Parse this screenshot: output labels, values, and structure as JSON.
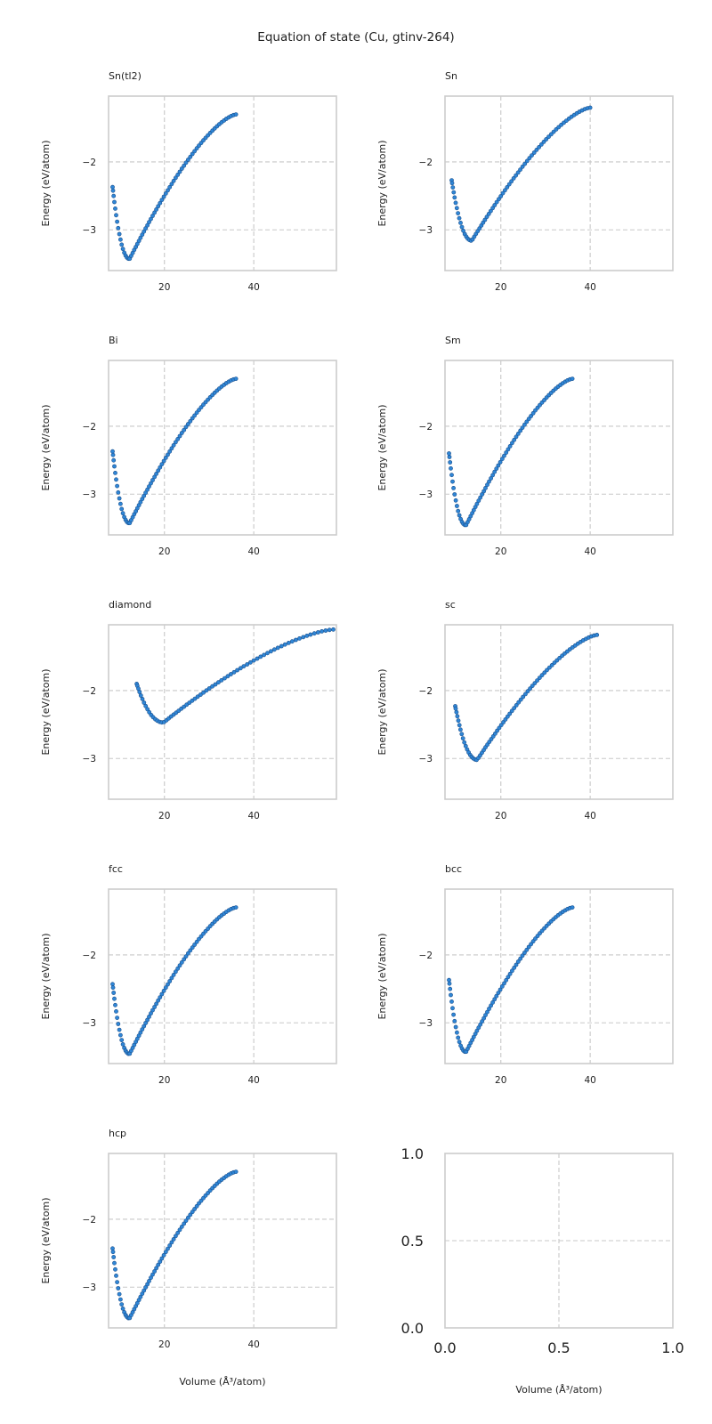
{
  "figure": {
    "suptitle": "Equation of state (Cu, gtinv-264)"
  },
  "colors": {
    "marker_fill": "#2f86d6",
    "marker_edge": "#1a4f8c",
    "grid": "#c8c8c8",
    "frame": "#cccccc"
  },
  "chart_data": [
    {
      "type": "scatter",
      "title": "Sn(tl2)",
      "xlabel": "",
      "ylabel": "Energy (eV/atom)",
      "xlim": [
        7.5,
        58.5
      ],
      "ylim": [
        -3.6,
        -1.03
      ],
      "xticks": [
        20,
        40
      ],
      "yticks": [
        -2,
        -3
      ],
      "grid": true,
      "curve": {
        "x_start": 8.4,
        "x_end": 36.0,
        "x_min": 12.2,
        "e_min": -3.43,
        "e_start": -2.37,
        "e_end": -1.3,
        "n": 70
      }
    },
    {
      "type": "scatter",
      "title": "Sn",
      "xlabel": "",
      "ylabel": "Energy (eV/atom)",
      "xlim": [
        7.5,
        58.5
      ],
      "ylim": [
        -3.6,
        -1.03
      ],
      "xticks": [
        20,
        40
      ],
      "yticks": [
        -2,
        -3
      ],
      "grid": true,
      "curve": {
        "x_start": 9.0,
        "x_end": 40.0,
        "x_min": 13.5,
        "e_min": -3.16,
        "e_start": -2.27,
        "e_end": -1.2,
        "n": 70
      }
    },
    {
      "type": "scatter",
      "title": "Bi",
      "xlabel": "",
      "ylabel": "Energy (eV/atom)",
      "xlim": [
        7.5,
        58.5
      ],
      "ylim": [
        -3.6,
        -1.03
      ],
      "xticks": [
        20,
        40
      ],
      "yticks": [
        -2,
        -3
      ],
      "grid": true,
      "curve": {
        "x_start": 8.4,
        "x_end": 36.0,
        "x_min": 12.2,
        "e_min": -3.43,
        "e_start": -2.37,
        "e_end": -1.3,
        "n": 70
      }
    },
    {
      "type": "scatter",
      "title": "Sm",
      "xlabel": "",
      "ylabel": "Energy (eV/atom)",
      "xlim": [
        7.5,
        58.5
      ],
      "ylim": [
        -3.6,
        -1.03
      ],
      "xticks": [
        20,
        40
      ],
      "yticks": [
        -2,
        -3
      ],
      "grid": true,
      "curve": {
        "x_start": 8.4,
        "x_end": 36.0,
        "x_min": 12.2,
        "e_min": -3.46,
        "e_start": -2.4,
        "e_end": -1.3,
        "n": 70
      }
    },
    {
      "type": "scatter",
      "title": "diamond",
      "xlabel": "",
      "ylabel": "Energy (eV/atom)",
      "xlim": [
        7.5,
        58.5
      ],
      "ylim": [
        -3.6,
        -1.03
      ],
      "xticks": [
        20,
        40
      ],
      "yticks": [
        -2,
        -3
      ],
      "grid": true,
      "curve": {
        "x_start": 13.8,
        "x_end": 57.8,
        "x_min": 19.8,
        "e_min": -2.47,
        "e_start": -1.9,
        "e_end": -1.1,
        "n": 70
      }
    },
    {
      "type": "scatter",
      "title": "sc",
      "xlabel": "",
      "ylabel": "Energy (eV/atom)",
      "xlim": [
        7.5,
        58.5
      ],
      "ylim": [
        -3.6,
        -1.03
      ],
      "xticks": [
        20,
        40
      ],
      "yticks": [
        -2,
        -3
      ],
      "grid": true,
      "curve": {
        "x_start": 9.8,
        "x_end": 41.5,
        "x_min": 14.7,
        "e_min": -3.02,
        "e_start": -2.23,
        "e_end": -1.18,
        "n": 70
      }
    },
    {
      "type": "scatter",
      "title": "fcc",
      "xlabel": "",
      "ylabel": "Energy (eV/atom)",
      "xlim": [
        7.5,
        58.5
      ],
      "ylim": [
        -3.6,
        -1.03
      ],
      "xticks": [
        20,
        40
      ],
      "yticks": [
        -2,
        -3
      ],
      "grid": true,
      "curve": {
        "x_start": 8.4,
        "x_end": 36.0,
        "x_min": 12.2,
        "e_min": -3.46,
        "e_start": -2.43,
        "e_end": -1.3,
        "n": 70
      }
    },
    {
      "type": "scatter",
      "title": "bcc",
      "xlabel": "",
      "ylabel": "Energy (eV/atom)",
      "xlim": [
        7.5,
        58.5
      ],
      "ylim": [
        -3.6,
        -1.03
      ],
      "xticks": [
        20,
        40
      ],
      "yticks": [
        -2,
        -3
      ],
      "grid": true,
      "curve": {
        "x_start": 8.4,
        "x_end": 36.0,
        "x_min": 12.2,
        "e_min": -3.43,
        "e_start": -2.37,
        "e_end": -1.3,
        "n": 70
      }
    },
    {
      "type": "scatter",
      "title": "hcp",
      "xlabel": "Volume (Å³/atom)",
      "ylabel": "Energy (eV/atom)",
      "xlim": [
        7.5,
        58.5
      ],
      "ylim": [
        -3.6,
        -1.03
      ],
      "xticks": [
        20,
        40
      ],
      "yticks": [
        -2,
        -3
      ],
      "grid": true,
      "curve": {
        "x_start": 8.4,
        "x_end": 36.0,
        "x_min": 12.2,
        "e_min": -3.46,
        "e_start": -2.43,
        "e_end": -1.3,
        "n": 70
      }
    },
    {
      "type": "scatter",
      "title": "",
      "xlabel": "Volume (Å³/atom)",
      "ylabel": "",
      "xlim": [
        0,
        1
      ],
      "ylim": [
        0,
        1
      ],
      "xticks": [
        0.0,
        0.5,
        1.0
      ],
      "yticks": [
        0.0,
        0.5,
        1.0
      ],
      "xtick_labels": [
        "0.0",
        "0.5",
        "1.0"
      ],
      "ytick_labels": [
        "0.0",
        "0.5",
        "1.0"
      ],
      "grid": true,
      "empty": true
    }
  ]
}
